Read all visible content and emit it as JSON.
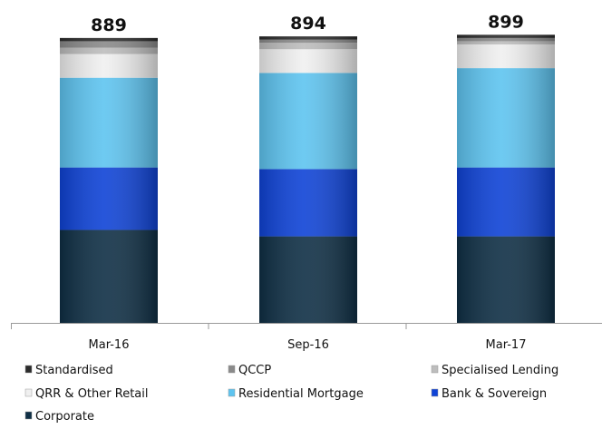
{
  "chart_data": {
    "type": "bar",
    "stacked": true,
    "title": "",
    "xlabel": "",
    "ylabel": "",
    "categories": [
      "Mar-16",
      "Sep-16",
      "Mar-17"
    ],
    "totals": [
      "889",
      "894",
      "899"
    ],
    "ylim": [
      0,
      900
    ],
    "grid": false,
    "legend_position": "bottom",
    "series": [
      {
        "name": "Corporate",
        "values": [
          290,
          270,
          270
        ],
        "color": "#0f2f45"
      },
      {
        "name": "Bank & Sovereign",
        "values": [
          195,
          210,
          215
        ],
        "color": "#0f43d6"
      },
      {
        "name": "Residential Mortgage",
        "values": [
          280,
          300,
          310
        ],
        "color": "#5ec4f0"
      },
      {
        "name": "QRR & Other Retail",
        "values": [
          74,
          74,
          74
        ],
        "color": "#f0f0f0"
      },
      {
        "name": "Specialised Lending",
        "values": [
          20,
          20,
          10
        ],
        "color": "#bdbdbd"
      },
      {
        "name": "QCCP",
        "values": [
          20,
          10,
          10
        ],
        "color": "#8a8a8a"
      },
      {
        "name": "Standardised",
        "values": [
          10,
          10,
          10
        ],
        "color": "#2b2b2b"
      }
    ],
    "legend": [
      {
        "name": "Standardised",
        "color": "#2b2b2b"
      },
      {
        "name": "QCCP",
        "color": "#8a8a8a"
      },
      {
        "name": "Specialised Lending",
        "color": "#bdbdbd"
      },
      {
        "name": "QRR & Other Retail",
        "color": "#f0f0f0"
      },
      {
        "name": "Residential Mortgage",
        "color": "#5ec4f0"
      },
      {
        "name": "Bank & Sovereign",
        "color": "#0f43d6"
      },
      {
        "name": "Corporate",
        "color": "#0f2f45"
      }
    ]
  }
}
